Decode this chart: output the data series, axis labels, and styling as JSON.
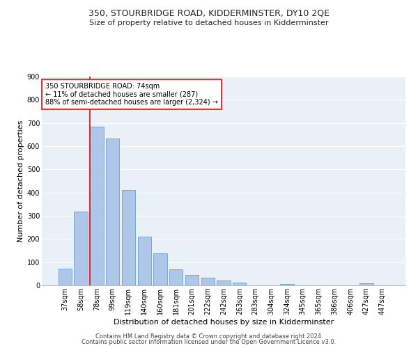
{
  "title": "350, STOURBRIDGE ROAD, KIDDERMINSTER, DY10 2QE",
  "subtitle": "Size of property relative to detached houses in Kidderminster",
  "xlabel": "Distribution of detached houses by size in Kidderminster",
  "ylabel": "Number of detached properties",
  "categories": [
    "37sqm",
    "58sqm",
    "78sqm",
    "99sqm",
    "119sqm",
    "140sqm",
    "160sqm",
    "181sqm",
    "201sqm",
    "222sqm",
    "242sqm",
    "263sqm",
    "283sqm",
    "304sqm",
    "324sqm",
    "345sqm",
    "365sqm",
    "386sqm",
    "406sqm",
    "427sqm",
    "447sqm"
  ],
  "values": [
    72,
    317,
    683,
    633,
    411,
    210,
    138,
    68,
    46,
    32,
    22,
    11,
    0,
    0,
    7,
    0,
    0,
    0,
    0,
    9,
    0
  ],
  "bar_color": "#aec6e8",
  "bar_edge_color": "#6a9fd0",
  "background_color": "#eaf0f8",
  "vline_x_index": 2,
  "vline_color": "red",
  "ylim": [
    0,
    900
  ],
  "yticks": [
    0,
    100,
    200,
    300,
    400,
    500,
    600,
    700,
    800,
    900
  ],
  "annotation_text_line1": "350 STOURBRIDGE ROAD: 74sqm",
  "annotation_text_line2": "← 11% of detached houses are smaller (287)",
  "annotation_text_line3": "88% of semi-detached houses are larger (2,324) →",
  "footer_line1": "Contains HM Land Registry data © Crown copyright and database right 2024.",
  "footer_line2": "Contains public sector information licensed under the Open Government Licence v3.0.",
  "title_fontsize": 9,
  "subtitle_fontsize": 8,
  "axis_label_fontsize": 8,
  "tick_fontsize": 7,
  "annotation_fontsize": 7,
  "footer_fontsize": 6
}
